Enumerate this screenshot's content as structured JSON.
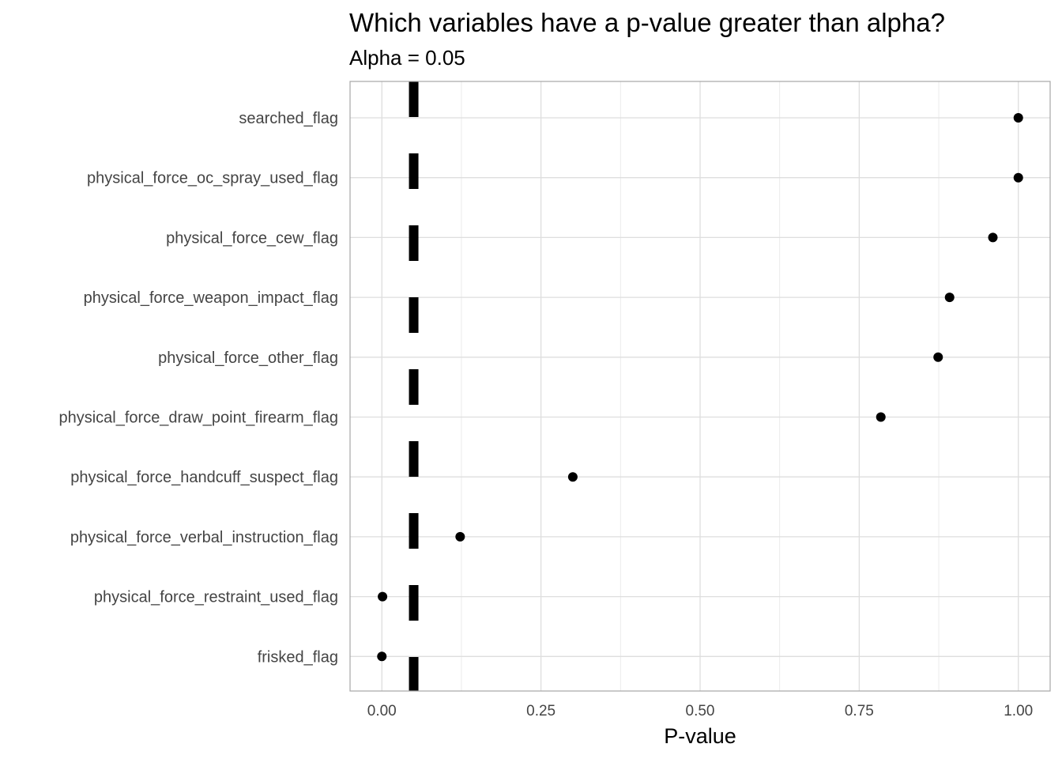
{
  "chart_data": {
    "type": "scatter",
    "title": "Which variables have a p-value greater than alpha?",
    "subtitle": "Alpha = 0.05",
    "xlabel": "P-value",
    "ylabel": "",
    "xlim": [
      -0.05,
      1.05
    ],
    "x_ticks": [
      0,
      0.25,
      0.5,
      0.75,
      1.0
    ],
    "x_tick_labels": [
      "0.00",
      "0.25",
      "0.50",
      "0.75",
      "1.00"
    ],
    "grid": true,
    "alpha_line": 0.05,
    "alpha_line_style": "dashed",
    "categories": [
      "searched_flag",
      "physical_force_oc_spray_used_flag",
      "physical_force_cew_flag",
      "physical_force_weapon_impact_flag",
      "physical_force_other_flag",
      "physical_force_draw_point_firearm_flag",
      "physical_force_handcuff_suspect_flag",
      "physical_force_verbal_instruction_flag",
      "physical_force_restraint_used_flag",
      "frisked_flag"
    ],
    "values": [
      1.0,
      1.0,
      0.96,
      0.892,
      0.874,
      0.784,
      0.3,
      0.123,
      0.001,
      0.0
    ],
    "colors": {
      "point": "#000000",
      "grid": "#dedede",
      "panel_border": "#a6a6a6",
      "alpha_line": "#000000"
    }
  }
}
